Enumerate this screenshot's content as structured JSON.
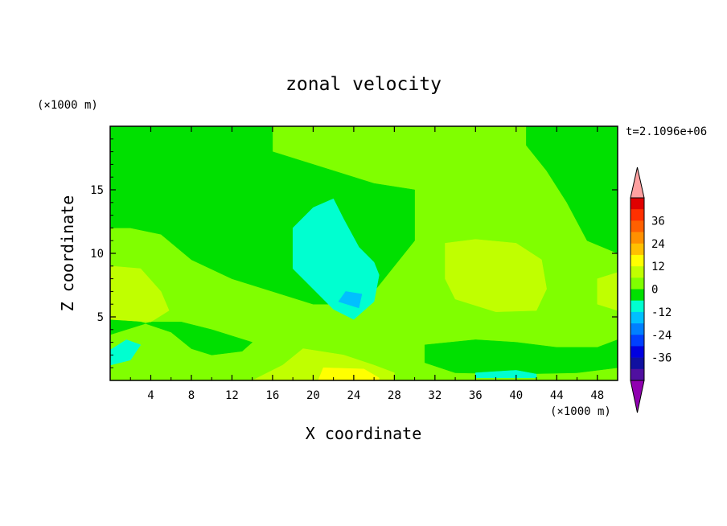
{
  "chart_data": {
    "type": "heatmap",
    "title": "zonal velocity",
    "xlabel": "X coordinate",
    "ylabel": "Z coordinate",
    "x_unit": "(×1000 m)",
    "y_unit": "(×1000 m)",
    "time_label": "t=2.1096e+06",
    "xlim": [
      0,
      50
    ],
    "ylim": [
      0,
      20
    ],
    "x_ticks": [
      4,
      8,
      12,
      16,
      20,
      24,
      28,
      32,
      36,
      40,
      44,
      48
    ],
    "y_ticks": [
      5,
      10,
      15
    ],
    "colorbar": {
      "labels": [
        36,
        24,
        12,
        0,
        -12,
        -24,
        -36
      ],
      "levels": [
        42,
        36,
        30,
        24,
        18,
        12,
        6,
        0,
        -6,
        -12,
        -18,
        -24,
        -30,
        -36,
        -42
      ],
      "colors": [
        "#e00000",
        "#ff3000",
        "#ff6000",
        "#ff9000",
        "#ffc000",
        "#ffff00",
        "#c0ff00",
        "#80ff00",
        "#00e000",
        "#00ffd0",
        "#00c0ff",
        "#0080ff",
        "#0040ff",
        "#0000e0",
        "#1010a0",
        "#5010a0"
      ],
      "over_color": "#ffa0a0",
      "under_color": "#9000b0"
    },
    "regions": [
      {
        "value": 3,
        "polygon": [
          [
            0,
            20
          ],
          [
            50,
            20
          ],
          [
            50,
            0
          ],
          [
            0,
            0
          ]
        ]
      },
      {
        "value": -3,
        "polygon": [
          [
            0,
            20
          ],
          [
            16,
            20
          ],
          [
            16,
            18
          ],
          [
            22,
            16.5
          ],
          [
            26,
            15.5
          ],
          [
            30,
            15
          ],
          [
            30,
            11
          ],
          [
            26,
            7
          ],
          [
            24,
            6
          ],
          [
            20,
            6
          ],
          [
            16,
            7
          ],
          [
            12,
            8
          ],
          [
            8,
            9.5
          ],
          [
            5,
            11.5
          ],
          [
            2,
            12
          ],
          [
            0,
            12
          ]
        ]
      },
      {
        "value": -3,
        "polygon": [
          [
            41,
            20
          ],
          [
            50,
            20
          ],
          [
            50,
            10
          ],
          [
            47,
            11
          ],
          [
            45,
            14
          ],
          [
            43,
            16.5
          ],
          [
            41,
            18.5
          ]
        ]
      },
      {
        "value": -3,
        "polygon": [
          [
            0,
            4.8
          ],
          [
            3,
            4.6
          ],
          [
            6,
            3.8
          ],
          [
            8,
            2.5
          ],
          [
            10,
            2
          ],
          [
            13,
            2.3
          ],
          [
            14,
            3
          ],
          [
            10,
            4
          ],
          [
            7,
            4.6
          ],
          [
            4,
            4.6
          ],
          [
            0,
            3.6
          ]
        ]
      },
      {
        "value": -3,
        "polygon": [
          [
            31,
            2.8
          ],
          [
            36,
            3.2
          ],
          [
            40,
            3
          ],
          [
            44,
            2.6
          ],
          [
            48,
            2.6
          ],
          [
            50,
            3.2
          ],
          [
            50,
            1
          ],
          [
            46,
            0.6
          ],
          [
            40,
            0.5
          ],
          [
            34,
            0.6
          ],
          [
            31,
            1.4
          ]
        ]
      },
      {
        "value": -9,
        "polygon": [
          [
            18,
            12
          ],
          [
            20,
            13.6
          ],
          [
            22,
            14.3
          ],
          [
            23,
            12.7
          ],
          [
            24.5,
            10.5
          ],
          [
            26,
            9.3
          ],
          [
            26.5,
            8.3
          ],
          [
            26,
            6.2
          ],
          [
            24,
            4.8
          ],
          [
            22,
            5.6
          ],
          [
            20,
            7.2
          ],
          [
            18,
            8.8
          ]
        ]
      },
      {
        "value": -9,
        "polygon": [
          [
            0,
            1.2
          ],
          [
            2,
            1.6
          ],
          [
            3,
            2.8
          ],
          [
            1.6,
            3.2
          ],
          [
            0,
            2.4
          ]
        ]
      },
      {
        "value": -9,
        "polygon": [
          [
            36,
            0.6
          ],
          [
            40,
            0.8
          ],
          [
            42,
            0.5
          ],
          [
            42,
            0.2
          ],
          [
            36,
            0.2
          ]
        ]
      },
      {
        "value": -15,
        "polygon": [
          [
            22.5,
            6.2
          ],
          [
            24.5,
            5.7
          ],
          [
            24.8,
            6.8
          ],
          [
            23.2,
            7
          ]
        ]
      },
      {
        "value": 9,
        "polygon": [
          [
            0,
            9
          ],
          [
            3,
            8.8
          ],
          [
            5,
            7
          ],
          [
            5.8,
            5.5
          ],
          [
            4,
            4.6
          ],
          [
            0,
            4.8
          ]
        ]
      },
      {
        "value": 9,
        "polygon": [
          [
            33,
            10.8
          ],
          [
            36,
            11.1
          ],
          [
            40,
            10.8
          ],
          [
            42.5,
            9.5
          ],
          [
            43,
            7.2
          ],
          [
            42,
            5.5
          ],
          [
            38,
            5.4
          ],
          [
            34,
            6.4
          ],
          [
            33,
            8
          ]
        ]
      },
      {
        "value": 9,
        "polygon": [
          [
            48,
            8
          ],
          [
            50,
            8.5
          ],
          [
            50,
            5.5
          ],
          [
            48,
            6
          ]
        ]
      },
      {
        "value": 9,
        "polygon": [
          [
            19,
            2.5
          ],
          [
            23,
            2
          ],
          [
            26,
            1.2
          ],
          [
            28,
            0.6
          ],
          [
            28,
            0
          ],
          [
            14,
            0
          ],
          [
            17,
            1.2
          ]
        ]
      },
      {
        "value": 15,
        "polygon": [
          [
            21,
            1
          ],
          [
            25,
            0.9
          ],
          [
            26.5,
            0.2
          ],
          [
            26.5,
            0
          ],
          [
            20.5,
            0
          ]
        ]
      }
    ]
  }
}
